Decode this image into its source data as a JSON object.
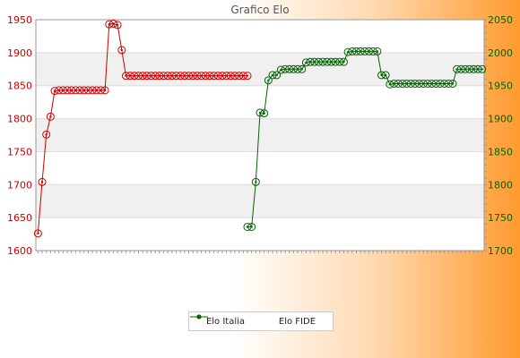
{
  "chart_data": {
    "type": "line",
    "title": "Grafico Elo",
    "y_left": {
      "ticks": [
        1600,
        1650,
        1700,
        1750,
        1800,
        1850,
        1900,
        1950
      ],
      "lim": [
        1600,
        1950
      ],
      "color": "#cc0000"
    },
    "y_right": {
      "ticks": [
        1700,
        1750,
        1800,
        1850,
        1900,
        1950,
        2000,
        2050
      ],
      "lim": [
        1700,
        2050
      ],
      "color": "#006600"
    },
    "x_index_count": 107,
    "grid": true,
    "legend_position": "bottom",
    "series": [
      {
        "name": "Elo Italia",
        "axis": "left",
        "color": "#cc0000",
        "points": [
          [
            0,
            1626
          ],
          [
            1,
            1704
          ],
          [
            2,
            1776
          ],
          [
            3,
            1803
          ],
          [
            4,
            1842
          ],
          [
            5,
            1843
          ],
          [
            6,
            1843
          ],
          [
            7,
            1843
          ],
          [
            8,
            1843
          ],
          [
            9,
            1843
          ],
          [
            10,
            1843
          ],
          [
            11,
            1843
          ],
          [
            12,
            1843
          ],
          [
            13,
            1843
          ],
          [
            14,
            1843
          ],
          [
            15,
            1843
          ],
          [
            16,
            1843
          ],
          [
            17,
            1943
          ],
          [
            18,
            1944
          ],
          [
            19,
            1942
          ],
          [
            20,
            1904
          ],
          [
            21,
            1865
          ],
          [
            22,
            1865
          ],
          [
            23,
            1865
          ],
          [
            24,
            1865
          ],
          [
            25,
            1865
          ],
          [
            26,
            1865
          ],
          [
            27,
            1865
          ],
          [
            28,
            1865
          ],
          [
            29,
            1865
          ],
          [
            30,
            1865
          ],
          [
            31,
            1865
          ],
          [
            32,
            1865
          ],
          [
            33,
            1865
          ],
          [
            34,
            1865
          ],
          [
            35,
            1865
          ],
          [
            36,
            1865
          ],
          [
            37,
            1865
          ],
          [
            38,
            1865
          ],
          [
            39,
            1865
          ],
          [
            40,
            1865
          ],
          [
            41,
            1865
          ],
          [
            42,
            1865
          ],
          [
            43,
            1865
          ],
          [
            44,
            1865
          ],
          [
            45,
            1865
          ],
          [
            46,
            1865
          ],
          [
            47,
            1865
          ],
          [
            48,
            1865
          ],
          [
            49,
            1865
          ],
          [
            50,
            1865
          ]
        ]
      },
      {
        "name": "Elo FIDE",
        "axis": "right",
        "color": "#006600",
        "points": [
          [
            50,
            1736
          ],
          [
            51,
            1736
          ],
          [
            52,
            1804
          ],
          [
            53,
            1909
          ],
          [
            54,
            1908
          ],
          [
            55,
            1958
          ],
          [
            56,
            1966
          ],
          [
            57,
            1966
          ],
          [
            58,
            1974
          ],
          [
            59,
            1975
          ],
          [
            60,
            1975
          ],
          [
            61,
            1975
          ],
          [
            62,
            1975
          ],
          [
            63,
            1975
          ],
          [
            64,
            1985
          ],
          [
            65,
            1986
          ],
          [
            66,
            1986
          ],
          [
            67,
            1986
          ],
          [
            68,
            1986
          ],
          [
            69,
            1986
          ],
          [
            70,
            1986
          ],
          [
            71,
            1986
          ],
          [
            72,
            1986
          ],
          [
            73,
            1986
          ],
          [
            74,
            2001
          ],
          [
            75,
            2002
          ],
          [
            76,
            2002
          ],
          [
            77,
            2002
          ],
          [
            78,
            2002
          ],
          [
            79,
            2002
          ],
          [
            80,
            2002
          ],
          [
            81,
            2002
          ],
          [
            82,
            1966
          ],
          [
            83,
            1966
          ],
          [
            84,
            1952
          ],
          [
            85,
            1953
          ],
          [
            86,
            1953
          ],
          [
            87,
            1953
          ],
          [
            88,
            1953
          ],
          [
            89,
            1953
          ],
          [
            90,
            1953
          ],
          [
            91,
            1953
          ],
          [
            92,
            1953
          ],
          [
            93,
            1953
          ],
          [
            94,
            1953
          ],
          [
            95,
            1953
          ],
          [
            96,
            1953
          ],
          [
            97,
            1953
          ],
          [
            98,
            1953
          ],
          [
            99,
            1953
          ],
          [
            100,
            1975
          ],
          [
            101,
            1975
          ],
          [
            102,
            1975
          ],
          [
            103,
            1975
          ],
          [
            104,
            1975
          ],
          [
            105,
            1975
          ],
          [
            106,
            1975
          ]
        ]
      }
    ]
  }
}
